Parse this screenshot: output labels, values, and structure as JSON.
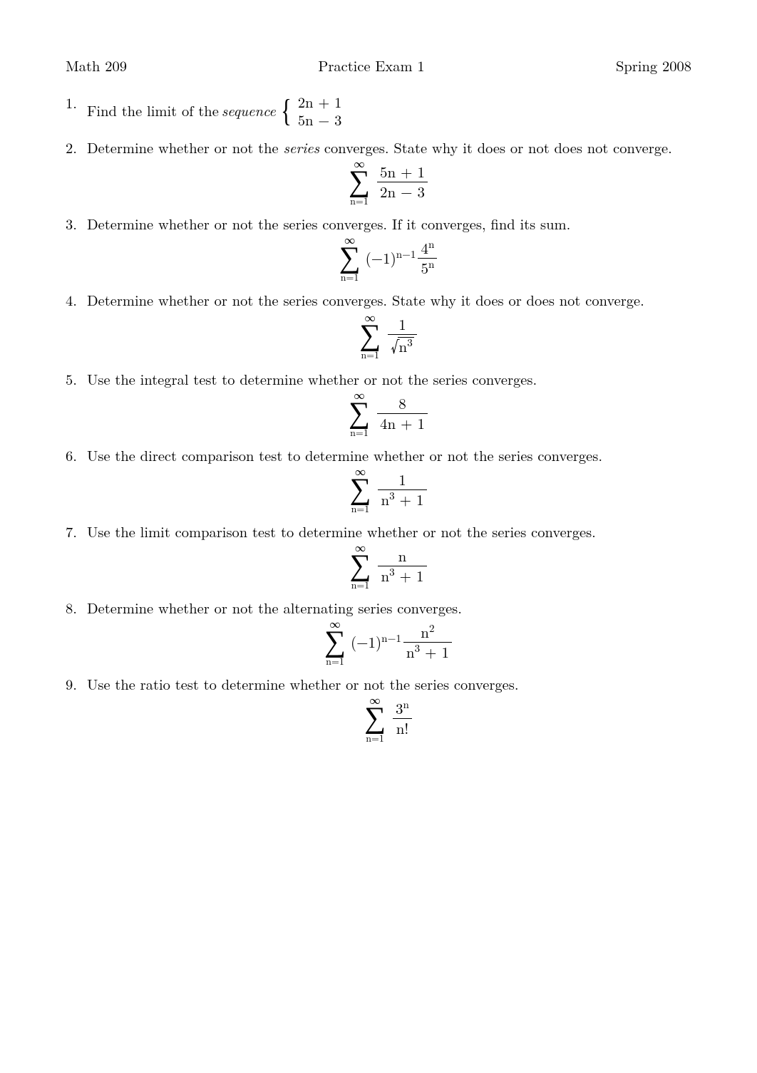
{
  "header": {
    "left": "Math 209",
    "center": "Practice Exam 1",
    "right": "Spring 2008"
  },
  "p1": {
    "text_a": "Find the limit of the ",
    "text_seq": "sequence",
    "seq_top": "2n + 1",
    "seq_bot": "5n − 3"
  },
  "p2": {
    "text": "Determine whether or not the ",
    "series": "series",
    "text_b": " converges.  State why it does or not does not converge.",
    "sum_top": "∞",
    "sum_bot": "n=1",
    "frac_num": "5n + 1",
    "frac_den": "2n − 3"
  },
  "p3": {
    "text": "Determine whether or not the series converges. If it converges, find its sum.",
    "sum_top": "∞",
    "sum_bot": "n=1",
    "sign_base": "(−1)",
    "sign_exp": "n−1",
    "frac_num_base": "4",
    "frac_num_exp": "n",
    "frac_den_base": "5",
    "frac_den_exp": "n"
  },
  "p4": {
    "text": "Determine whether or not the series converges. State why it does or does not converge.",
    "sum_top": "∞",
    "sum_bot": "n=1",
    "frac_num": "1",
    "rad_base": "n",
    "rad_exp": "3"
  },
  "p5": {
    "text": "Use the integral test to determine whether or not the series converges.",
    "sum_top": "∞",
    "sum_bot": "n=1",
    "frac_num": "8",
    "frac_den": "4n + 1"
  },
  "p6": {
    "text": "Use the direct comparison test to determine whether or not the series converges.",
    "sum_top": "∞",
    "sum_bot": "n=1",
    "frac_num": "1",
    "den_a": "n",
    "den_exp": "3",
    "den_b": " + 1"
  },
  "p7": {
    "text": "Use the limit comparison test to determine whether or not the series converges.",
    "sum_top": "∞",
    "sum_bot": "n=1",
    "frac_num": "n",
    "den_a": "n",
    "den_exp": "3",
    "den_b": " + 1"
  },
  "p8": {
    "text": "Determine whether or not the alternating series converges.",
    "sum_top": "∞",
    "sum_bot": "n=1",
    "sign_base": "(−1)",
    "sign_exp": "n−1",
    "num_a": "n",
    "num_exp": "2",
    "den_a": "n",
    "den_exp": "3",
    "den_b": " + 1"
  },
  "p9": {
    "text": "Use the ratio test to determine whether or not the series converges.",
    "sum_top": "∞",
    "sum_bot": "n=1",
    "num_base": "3",
    "num_exp": "n",
    "den": "n!"
  }
}
